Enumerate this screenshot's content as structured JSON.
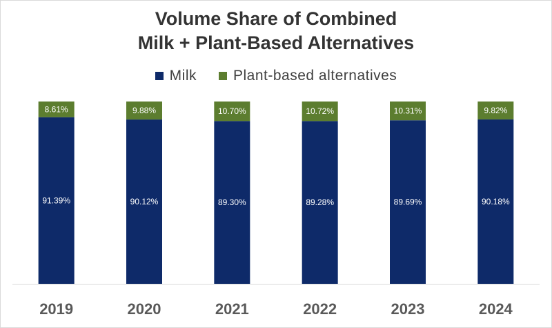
{
  "chart_data": {
    "type": "bar",
    "stacked": true,
    "title_lines": [
      "Volume Share of Combined",
      "Milk + Plant-Based Alternatives"
    ],
    "xlabel": "",
    "ylabel": "",
    "categories": [
      "2019",
      "2020",
      "2021",
      "2022",
      "2023",
      "2024"
    ],
    "series": [
      {
        "name": "Milk",
        "color": "#0e2a69",
        "values": [
          91.39,
          90.12,
          89.3,
          89.28,
          89.69,
          90.18
        ],
        "labels": [
          "91.39%",
          "90.12%",
          "89.30%",
          "89.28%",
          "89.69%",
          "90.18%"
        ]
      },
      {
        "name": "Plant-based alternatives",
        "color": "#5c7d2f",
        "values": [
          8.61,
          9.88,
          10.7,
          10.72,
          10.31,
          9.82
        ],
        "labels": [
          "8.61%",
          "9.88%",
          "10.70%",
          "10.72%",
          "10.31%",
          "9.82%"
        ]
      }
    ],
    "ylim": [
      0,
      100
    ],
    "grid": false,
    "legend": "top-center",
    "axis_color": "#d9d9d9",
    "tick_label_color": "#595959"
  }
}
